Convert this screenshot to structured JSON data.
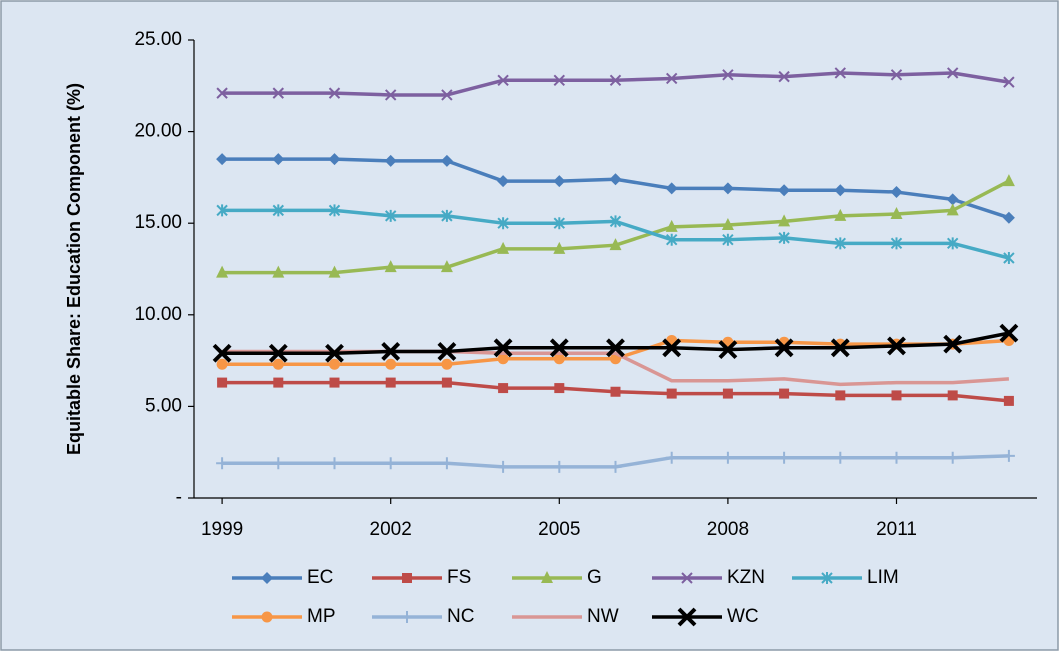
{
  "chart_data": {
    "type": "line",
    "y_label": "Equitable Share: Education Component (%)",
    "x": [
      1999,
      2000,
      2001,
      2002,
      2003,
      2004,
      2005,
      2006,
      2007,
      2008,
      2009,
      2010,
      2011,
      2012,
      2013
    ],
    "xlim": [
      1998.5,
      2013.5
    ],
    "xticks": [
      1999,
      2002,
      2005,
      2008,
      2011
    ],
    "ylim": [
      0,
      25
    ],
    "yticks": [
      {
        "value": 0,
        "label": "-"
      },
      {
        "value": 5,
        "label": "5.00"
      },
      {
        "value": 10,
        "label": "10.00"
      },
      {
        "value": 15,
        "label": "15.00"
      },
      {
        "value": 20,
        "label": "20.00"
      },
      {
        "value": 25,
        "label": "25.00"
      }
    ],
    "legend": "bottom",
    "series": [
      {
        "name": "EC",
        "color": "#4a7ebb",
        "marker": "diamond",
        "values": [
          18.5,
          18.5,
          18.5,
          18.4,
          18.4,
          17.3,
          17.3,
          17.4,
          16.9,
          16.9,
          16.8,
          16.8,
          16.7,
          16.3,
          15.3
        ]
      },
      {
        "name": "FS",
        "color": "#be4b48",
        "marker": "square",
        "values": [
          6.3,
          6.3,
          6.3,
          6.3,
          6.3,
          6.0,
          6.0,
          5.8,
          5.7,
          5.7,
          5.7,
          5.6,
          5.6,
          5.6,
          5.3
        ]
      },
      {
        "name": "G",
        "color": "#98b954",
        "marker": "triangle",
        "values": [
          12.3,
          12.3,
          12.3,
          12.6,
          12.6,
          13.6,
          13.6,
          13.8,
          14.8,
          14.9,
          15.1,
          15.4,
          15.5,
          15.7,
          17.3
        ]
      },
      {
        "name": "KZN",
        "color": "#7d60a0",
        "marker": "x",
        "values": [
          22.1,
          22.1,
          22.1,
          22.0,
          22.0,
          22.8,
          22.8,
          22.8,
          22.9,
          23.1,
          23.0,
          23.2,
          23.1,
          23.2,
          22.7
        ]
      },
      {
        "name": "LIM",
        "color": "#46aac5",
        "marker": "star",
        "values": [
          15.7,
          15.7,
          15.7,
          15.4,
          15.4,
          15.0,
          15.0,
          15.1,
          14.1,
          14.1,
          14.2,
          13.9,
          13.9,
          13.9,
          13.1
        ]
      },
      {
        "name": "MP",
        "color": "#f79646",
        "marker": "circle",
        "values": [
          7.3,
          7.3,
          7.3,
          7.3,
          7.3,
          7.6,
          7.6,
          7.6,
          8.6,
          8.5,
          8.5,
          8.4,
          8.4,
          8.4,
          8.6
        ]
      },
      {
        "name": "NC",
        "color": "#95b3d7",
        "marker": "plus",
        "values": [
          1.9,
          1.9,
          1.9,
          1.9,
          1.9,
          1.7,
          1.7,
          1.7,
          2.2,
          2.2,
          2.2,
          2.2,
          2.2,
          2.2,
          2.3
        ]
      },
      {
        "name": "NW",
        "color": "#d99694",
        "marker": "none",
        "values": [
          8.0,
          8.0,
          8.0,
          8.0,
          8.0,
          7.9,
          7.9,
          7.9,
          6.4,
          6.4,
          6.5,
          6.2,
          6.3,
          6.3,
          6.5
        ]
      },
      {
        "name": "WC",
        "color": "#000000",
        "marker": "bigx",
        "values": [
          7.9,
          7.9,
          7.9,
          8.0,
          8.0,
          8.2,
          8.2,
          8.2,
          8.2,
          8.1,
          8.2,
          8.2,
          8.3,
          8.4,
          9.0
        ]
      }
    ]
  }
}
